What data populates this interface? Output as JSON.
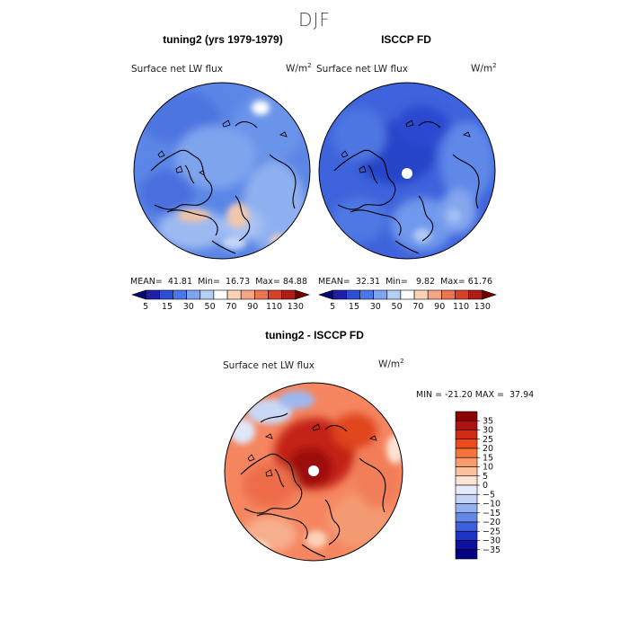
{
  "figure": {
    "title": "DJF"
  },
  "panels": [
    {
      "title": "tuning2 (yrs 1979-1979)",
      "variable": "Surface net LW flux",
      "unit": "W/m",
      "unit_exp": "2",
      "stats": {
        "mean_label": "MEAN=",
        "mean": "41.81",
        "min_label": "Min=",
        "min": "16.73",
        "max_label": "Max=",
        "max": "84.88"
      }
    },
    {
      "title": "ISCCP FD",
      "variable": "Surface net LW flux",
      "unit": "W/m",
      "unit_exp": "2",
      "stats": {
        "mean_label": "MEAN=",
        "mean": "32.31",
        "min_label": "Min=",
        "min": "9.82",
        "max_label": "Max=",
        "max": "61.76"
      }
    }
  ],
  "diff_panel": {
    "title": "tuning2 - ISCCP FD",
    "variable": "Surface net LW flux",
    "unit": "W/m",
    "unit_exp": "2",
    "min_label": "MIN =",
    "min": "-21.20",
    "max_label": "MAX =",
    "max": "37.94"
  },
  "chart_data": [
    {
      "type": "heatmap",
      "title": "tuning2 (yrs 1979-1979)",
      "projection": "north-polar-stereographic",
      "field": "Surface net LW flux",
      "units": "W/m2",
      "mean": 41.81,
      "min": 16.73,
      "max": 84.88,
      "colorbar": {
        "orientation": "horizontal",
        "levels": [
          5,
          15,
          30,
          50,
          70,
          90,
          110,
          130
        ],
        "tick_labels": [
          "5",
          "15",
          "30",
          "50",
          "70",
          "90",
          "110",
          "130"
        ],
        "colors": [
          "#08086e",
          "#1f1fa8",
          "#2b4fd8",
          "#4a78e8",
          "#7ea3f0",
          "#b6cdf5",
          "#ffffff",
          "#fbd2b8",
          "#f6a584",
          "#ee7350",
          "#d9422a",
          "#b01c16",
          "#700000"
        ]
      }
    },
    {
      "type": "heatmap",
      "title": "ISCCP FD",
      "projection": "north-polar-stereographic",
      "field": "Surface net LW flux",
      "units": "W/m2",
      "mean": 32.31,
      "min": 9.82,
      "max": 61.76,
      "colorbar": {
        "orientation": "horizontal",
        "levels": [
          5,
          15,
          30,
          50,
          70,
          90,
          110,
          130
        ],
        "tick_labels": [
          "5",
          "15",
          "30",
          "50",
          "70",
          "90",
          "110",
          "130"
        ],
        "colors": [
          "#08086e",
          "#1f1fa8",
          "#2b4fd8",
          "#4a78e8",
          "#7ea3f0",
          "#b6cdf5",
          "#ffffff",
          "#fbd2b8",
          "#f6a584",
          "#ee7350",
          "#d9422a",
          "#b01c16",
          "#700000"
        ]
      }
    },
    {
      "type": "heatmap",
      "title": "tuning2 - ISCCP FD",
      "projection": "north-polar-stereographic",
      "field": "Surface net LW flux difference",
      "units": "W/m2",
      "min": -21.2,
      "max": 37.94,
      "colorbar": {
        "orientation": "vertical",
        "tick_labels": [
          "35",
          "30",
          "25",
          "20",
          "15",
          "10",
          "5",
          "0",
          "−5",
          "−10",
          "−15",
          "−20",
          "−25",
          "−30",
          "−35"
        ],
        "colors": [
          "#8b0000",
          "#b01212",
          "#d42a14",
          "#ec4a1c",
          "#f5743a",
          "#f99a6c",
          "#fbc09e",
          "#fde3d4",
          "#e4ecfb",
          "#c3d4f7",
          "#93b1f0",
          "#6588e8",
          "#3e60df",
          "#1f34c6",
          "#0d119e",
          "#000080"
        ]
      }
    }
  ]
}
